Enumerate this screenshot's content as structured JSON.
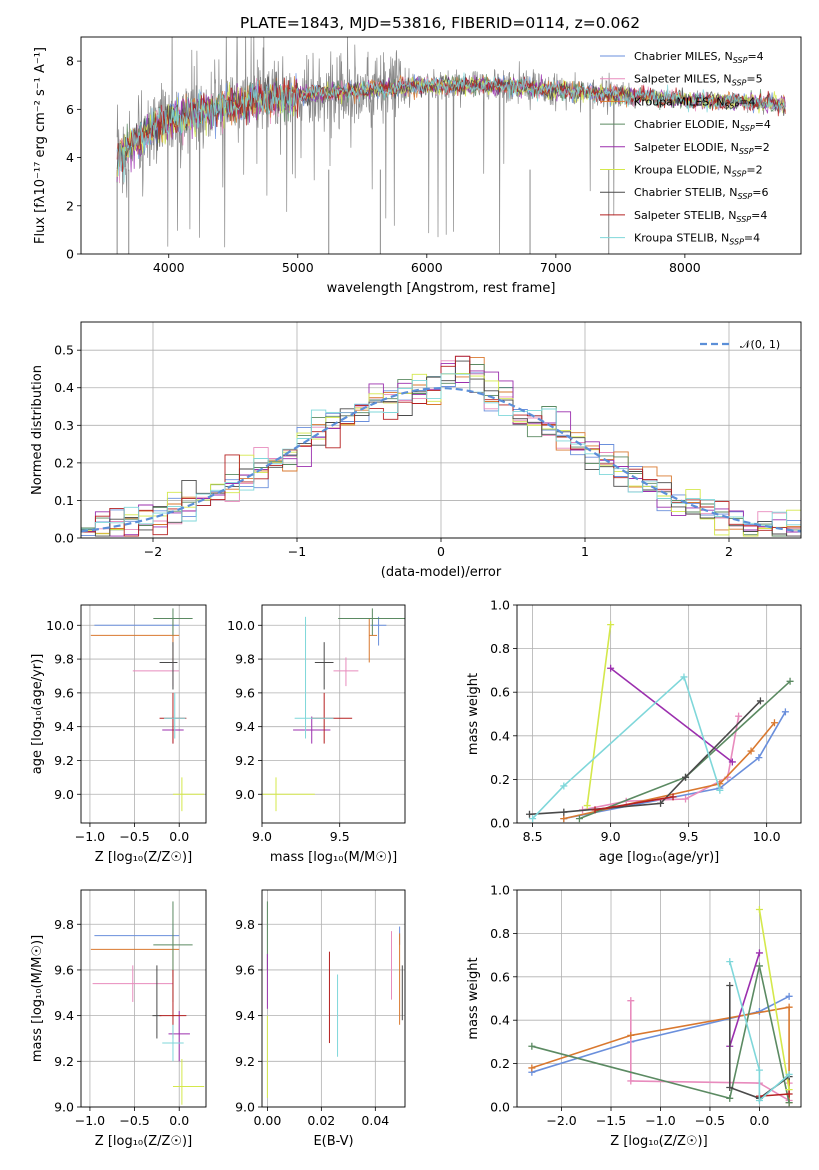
{
  "figure_title": "PLATE=1843, MJD=53816, FIBERID=0114, z=0.062",
  "palette": [
    "#6a8fdc",
    "#e88bbd",
    "#d9782f",
    "#5b8a62",
    "#9b2fae",
    "#d4e84b",
    "#4a4a4a",
    "#b52020",
    "#7fd7da"
  ],
  "chart_data": [
    {
      "id": "spectrum",
      "type": "line",
      "xlabel": "wavelength [Angstrom, rest frame]",
      "ylabel": "Flux [fλ10⁻¹⁷ erg cm⁻² s⁻¹ A⁻¹]",
      "xlim": [
        3320,
        8900
      ],
      "ylim": [
        0,
        9
      ],
      "xticks": [
        4000,
        5000,
        6000,
        7000,
        8000
      ],
      "yticks": [
        0,
        2,
        4,
        6,
        8
      ],
      "grid": false,
      "legend_position": "top-right",
      "data_envelope": {
        "x": [
          3600,
          3700,
          3900,
          4200,
          4500,
          5000,
          5500,
          6000,
          6500,
          7000,
          7500,
          8000,
          8500,
          8780
        ],
        "y": [
          4.0,
          4.5,
          5.3,
          5.9,
          6.2,
          6.6,
          6.8,
          7.0,
          7.0,
          6.8,
          6.6,
          6.4,
          6.3,
          6.2
        ]
      },
      "series": [
        {
          "name": "Chabrier MILES, N_SSP=4",
          "label_main": "Chabrier MILES, N",
          "label_sub": "SSP",
          "label_tail": "=4"
        },
        {
          "name": "Salpeter MILES, N_SSP=5",
          "label_main": "Salpeter MILES, N",
          "label_sub": "SSP",
          "label_tail": "=5"
        },
        {
          "name": "Kroupa MILES, N_SSP=4",
          "label_main": "Kroupa MILES, N",
          "label_sub": "SSP",
          "label_tail": "=4"
        },
        {
          "name": "Chabrier ELODIE, N_SSP=4",
          "label_main": "Chabrier ELODIE, N",
          "label_sub": "SSP",
          "label_tail": "=4"
        },
        {
          "name": "Salpeter ELODIE, N_SSP=2",
          "label_main": "Salpeter ELODIE, N",
          "label_sub": "SSP",
          "label_tail": "=2"
        },
        {
          "name": "Kroupa ELODIE, N_SSP=2",
          "label_main": "Kroupa ELODIE, N",
          "label_sub": "SSP",
          "label_tail": "=2"
        },
        {
          "name": "Chabrier STELIB, N_SSP=6",
          "label_main": "Chabrier STELIB, N",
          "label_sub": "SSP",
          "label_tail": "=6"
        },
        {
          "name": "Salpeter STELIB, N_SSP=4",
          "label_main": "Salpeter STELIB, N",
          "label_sub": "SSP",
          "label_tail": "=4"
        },
        {
          "name": "Kroupa STELIB, N_SSP=4",
          "label_main": "Kroupa STELIB, N",
          "label_sub": "SSP",
          "label_tail": "=4"
        }
      ]
    },
    {
      "id": "residuals",
      "type": "line",
      "xlabel": "(data-model)/error",
      "ylabel": "Normed distribution",
      "xlim": [
        -2.5,
        2.5
      ],
      "ylim": [
        0,
        0.575
      ],
      "xticks": [
        -2,
        -1,
        0,
        1,
        2
      ],
      "yticks": [
        0.0,
        0.1,
        0.2,
        0.3,
        0.4,
        0.5
      ],
      "grid": true,
      "legend_position": "top-right",
      "reference_label": "𝒩(0, 1)",
      "bin_width": 0.1
    },
    {
      "id": "age_vs_Z",
      "type": "scatter",
      "xlabel": "Z [log₁₀(Z/Z☉)]",
      "ylabel": "age  [log₁₀(age/yr)]",
      "xlim": [
        -1.1,
        0.3
      ],
      "ylim": [
        8.83,
        10.12
      ],
      "xticks": [
        -1.0,
        -0.5,
        0.0
      ],
      "yticks": [
        9.0,
        9.2,
        9.4,
        9.6,
        9.8,
        10.0
      ],
      "grid": true,
      "points": [
        {
          "x": -0.07,
          "y": 10.0,
          "xerr": [
            0.88,
            0.07
          ],
          "yerr": [
            0.12,
            0.05
          ]
        },
        {
          "x": -0.07,
          "y": 9.73,
          "xerr": [
            0.45,
            0.07
          ],
          "yerr": [
            0.09,
            0.08
          ]
        },
        {
          "x": -0.07,
          "y": 9.94,
          "xerr": [
            0.92,
            0.07
          ],
          "yerr": [
            0.16,
            0.1
          ]
        },
        {
          "x": -0.07,
          "y": 10.04,
          "xerr": [
            0.22,
            0.22
          ],
          "yerr": [
            0.1,
            0.06
          ]
        },
        {
          "x": -0.07,
          "y": 9.38,
          "xerr": [
            0.12,
            0.12
          ],
          "yerr": [
            0.08,
            0.08
          ]
        },
        {
          "x": 0.03,
          "y": 9.0,
          "xerr": [
            0.1,
            0.25
          ],
          "yerr": [
            0.1,
            0.1
          ]
        },
        {
          "x": -0.07,
          "y": 9.78,
          "xerr": [
            0.15,
            0.05
          ],
          "yerr": [
            0.16,
            0.12
          ]
        },
        {
          "x": -0.07,
          "y": 9.45,
          "xerr": [
            0.15,
            0.15
          ],
          "yerr": [
            0.15,
            0.15
          ]
        },
        {
          "x": -0.05,
          "y": 9.45,
          "xerr": [
            0.12,
            0.12
          ],
          "yerr": [
            0.12,
            0.15
          ]
        }
      ]
    },
    {
      "id": "age_vs_mass",
      "type": "scatter",
      "xlabel": "mass [log₁₀(M/M☉)]",
      "ylabel": "",
      "xlim": [
        9.0,
        9.92
      ],
      "ylim": [
        8.83,
        10.12
      ],
      "xticks": [
        9.0,
        9.5
      ],
      "yticks": [
        9.0,
        9.2,
        9.4,
        9.6,
        9.8,
        10.0
      ],
      "grid": true,
      "points": [
        {
          "x": 9.75,
          "y": 10.0,
          "xerr": [
            0.05,
            0.05
          ],
          "yerr": [
            0.12,
            0.05
          ]
        },
        {
          "x": 9.54,
          "y": 9.73,
          "xerr": [
            0.08,
            0.08
          ],
          "yerr": [
            0.09,
            0.08
          ]
        },
        {
          "x": 9.69,
          "y": 9.94,
          "xerr": [
            0.0,
            0.05
          ],
          "yerr": [
            0.16,
            0.1
          ]
        },
        {
          "x": 9.71,
          "y": 10.04,
          "xerr": [
            0.22,
            0.22
          ],
          "yerr": [
            0.1,
            0.06
          ]
        },
        {
          "x": 9.32,
          "y": 9.38,
          "xerr": [
            0.12,
            0.12
          ],
          "yerr": [
            0.08,
            0.08
          ]
        },
        {
          "x": 9.09,
          "y": 9.0,
          "xerr": [
            0.1,
            0.25
          ],
          "yerr": [
            0.1,
            0.1
          ]
        },
        {
          "x": 9.4,
          "y": 9.78,
          "xerr": [
            0.06,
            0.06
          ],
          "yerr": [
            0.16,
            0.12
          ]
        },
        {
          "x": 9.4,
          "y": 9.45,
          "xerr": [
            0.08,
            0.18
          ],
          "yerr": [
            0.15,
            0.15
          ]
        },
        {
          "x": 9.28,
          "y": 9.45,
          "xerr": [
            0.07,
            0.18
          ],
          "yerr": [
            0.12,
            0.6
          ]
        }
      ]
    },
    {
      "id": "mass_weight_vs_age",
      "type": "line",
      "xlabel": "age  [log₁₀(age/yr)]",
      "ylabel": "mass weight",
      "xlim": [
        8.4,
        10.22
      ],
      "ylim": [
        0,
        1.0
      ],
      "xticks": [
        8.5,
        9.0,
        9.5,
        10.0
      ],
      "yticks": [
        0.0,
        0.2,
        0.4,
        0.6,
        0.8,
        1.0
      ],
      "grid": true,
      "series": [
        {
          "x": [
            8.7,
            9.7,
            9.95,
            10.12
          ],
          "y": [
            0.02,
            0.16,
            0.3,
            0.51
          ]
        },
        {
          "x": [
            8.82,
            9.1,
            9.48,
            9.75,
            9.82
          ],
          "y": [
            0.06,
            0.1,
            0.11,
            0.21,
            0.49
          ]
        },
        {
          "x": [
            8.7,
            9.7,
            9.9,
            10.05
          ],
          "y": [
            0.02,
            0.18,
            0.33,
            0.46
          ]
        },
        {
          "x": [
            8.8,
            9.48,
            10.15
          ],
          "y": [
            0.02,
            0.21,
            0.65
          ]
        },
        {
          "x": [
            9.0,
            9.78
          ],
          "y": [
            0.71,
            0.28
          ]
        },
        {
          "x": [
            8.85,
            9.0
          ],
          "y": [
            0.08,
            0.91
          ]
        },
        {
          "x": [
            8.48,
            8.7,
            9.32,
            9.48,
            9.96
          ],
          "y": [
            0.04,
            0.05,
            0.09,
            0.21,
            0.56
          ]
        },
        {
          "x": [
            8.9,
            9.4
          ],
          "y": [
            0.06,
            0.12
          ]
        },
        {
          "x": [
            8.5,
            8.7,
            9.47,
            9.7
          ],
          "y": [
            0.02,
            0.17,
            0.67,
            0.15
          ]
        }
      ]
    },
    {
      "id": "mass_vs_Z",
      "type": "scatter",
      "xlabel": "Z [log₁₀(Z/Z☉)]",
      "ylabel": "mass [log₁₀(M/M☉)]",
      "xlim": [
        -1.1,
        0.3
      ],
      "ylim": [
        9.0,
        9.95
      ],
      "xticks": [
        -1.0,
        -0.5,
        0.0
      ],
      "yticks": [
        9.0,
        9.2,
        9.4,
        9.6,
        9.8
      ],
      "grid": true,
      "points": [
        {
          "x": -0.07,
          "y": 9.75,
          "xerr": [
            0.88,
            0.07
          ],
          "yerr": [
            0.05,
            0.05
          ]
        },
        {
          "x": -0.52,
          "y": 9.54,
          "xerr": [
            0.45,
            0.45
          ],
          "yerr": [
            0.08,
            0.08
          ]
        },
        {
          "x": -0.07,
          "y": 9.69,
          "xerr": [
            0.92,
            0.07
          ],
          "yerr": [
            0.12,
            0.07
          ]
        },
        {
          "x": -0.07,
          "y": 9.71,
          "xerr": [
            0.22,
            0.22
          ],
          "yerr": [
            0.25,
            0.19
          ]
        },
        {
          "x": 0.0,
          "y": 9.32,
          "xerr": [
            0.12,
            0.12
          ],
          "yerr": [
            0.12,
            0.1
          ]
        },
        {
          "x": 0.03,
          "y": 9.09,
          "xerr": [
            0.1,
            0.25
          ],
          "yerr": [
            0.08,
            0.12
          ]
        },
        {
          "x": -0.25,
          "y": 9.4,
          "xerr": [
            0.05,
            0.05
          ],
          "yerr": [
            0.1,
            0.22
          ]
        },
        {
          "x": -0.07,
          "y": 9.4,
          "xerr": [
            0.15,
            0.15
          ],
          "yerr": [
            0.1,
            0.2
          ]
        },
        {
          "x": -0.07,
          "y": 9.28,
          "xerr": [
            0.12,
            0.12
          ],
          "yerr": [
            0.08,
            0.08
          ]
        }
      ]
    },
    {
      "id": "mass_vs_ebv",
      "type": "scatter",
      "xlabel": "E(B-V)",
      "ylabel": "",
      "xlim": [
        -0.002,
        0.051
      ],
      "ylim": [
        9.0,
        9.95
      ],
      "xticks": [
        0.0,
        0.02,
        0.04
      ],
      "yticks": [
        9.0,
        9.2,
        9.4,
        9.6,
        9.8
      ],
      "grid": true,
      "points": [
        {
          "x": 0.049,
          "y": 9.75,
          "xerr": [
            0,
            0
          ],
          "yerr": [
            0.04,
            0.04
          ]
        },
        {
          "x": 0.046,
          "y": 9.62,
          "xerr": [
            0,
            0
          ],
          "yerr": [
            0.15,
            0.15
          ]
        },
        {
          "x": 0.049,
          "y": 9.56,
          "xerr": [
            0,
            0
          ],
          "yerr": [
            0.2,
            0.2
          ]
        },
        {
          "x": 0.0,
          "y": 9.75,
          "xerr": [
            0,
            0
          ],
          "yerr": [
            0.15,
            0.15
          ]
        },
        {
          "x": 0.0,
          "y": 9.55,
          "xerr": [
            0,
            0
          ],
          "yerr": [
            0.12,
            0.12
          ]
        },
        {
          "x": 0.0,
          "y": 9.22,
          "xerr": [
            0,
            0
          ],
          "yerr": [
            0.18,
            0.18
          ]
        },
        {
          "x": 0.05,
          "y": 9.5,
          "xerr": [
            0,
            0
          ],
          "yerr": [
            0.12,
            0.12
          ]
        },
        {
          "x": 0.023,
          "y": 9.48,
          "xerr": [
            0,
            0
          ],
          "yerr": [
            0.2,
            0.2
          ]
        },
        {
          "x": 0.026,
          "y": 9.4,
          "xerr": [
            0,
            0
          ],
          "yerr": [
            0.18,
            0.18
          ]
        }
      ]
    },
    {
      "id": "mass_weight_vs_Z",
      "type": "line",
      "xlabel": "Z [log₁₀(Z/Z☉)]",
      "ylabel": "mass weight",
      "xlim": [
        -2.45,
        0.42
      ],
      "ylim": [
        0,
        1.0
      ],
      "xticks": [
        -2.0,
        -1.5,
        -1.0,
        -0.5,
        0.0
      ],
      "yticks": [
        0.0,
        0.2,
        0.4,
        0.6,
        0.8,
        1.0
      ],
      "grid": true,
      "series": [
        {
          "x": [
            -2.3,
            -1.3,
            0.0,
            0.3
          ],
          "y": [
            0.16,
            0.3,
            0.44,
            0.51
          ]
        },
        {
          "x": [
            -1.3,
            -1.3,
            0.0,
            0.3,
            0.3
          ],
          "y": [
            0.49,
            0.12,
            0.11,
            0.03,
            0.11
          ]
        },
        {
          "x": [
            -2.3,
            -1.3,
            0.3,
            0.3
          ],
          "y": [
            0.18,
            0.33,
            0.46,
            0.02
          ]
        },
        {
          "x": [
            -2.3,
            -0.3,
            0.0,
            0.3
          ],
          "y": [
            0.28,
            0.04,
            0.65,
            0.02
          ]
        },
        {
          "x": [
            -0.3,
            0.0
          ],
          "y": [
            0.28,
            0.71
          ]
        },
        {
          "x": [
            0.0,
            0.3
          ],
          "y": [
            0.91,
            0.08
          ]
        },
        {
          "x": [
            -0.3,
            -0.3,
            0.0,
            0.3
          ],
          "y": [
            0.56,
            0.09,
            0.04,
            0.14
          ]
        },
        {
          "x": [
            0.0,
            0.3
          ],
          "y": [
            0.05,
            0.06
          ]
        },
        {
          "x": [
            -0.3,
            0.0,
            0.0,
            0.3
          ],
          "y": [
            0.67,
            0.17,
            0.03,
            0.15
          ]
        }
      ]
    }
  ]
}
